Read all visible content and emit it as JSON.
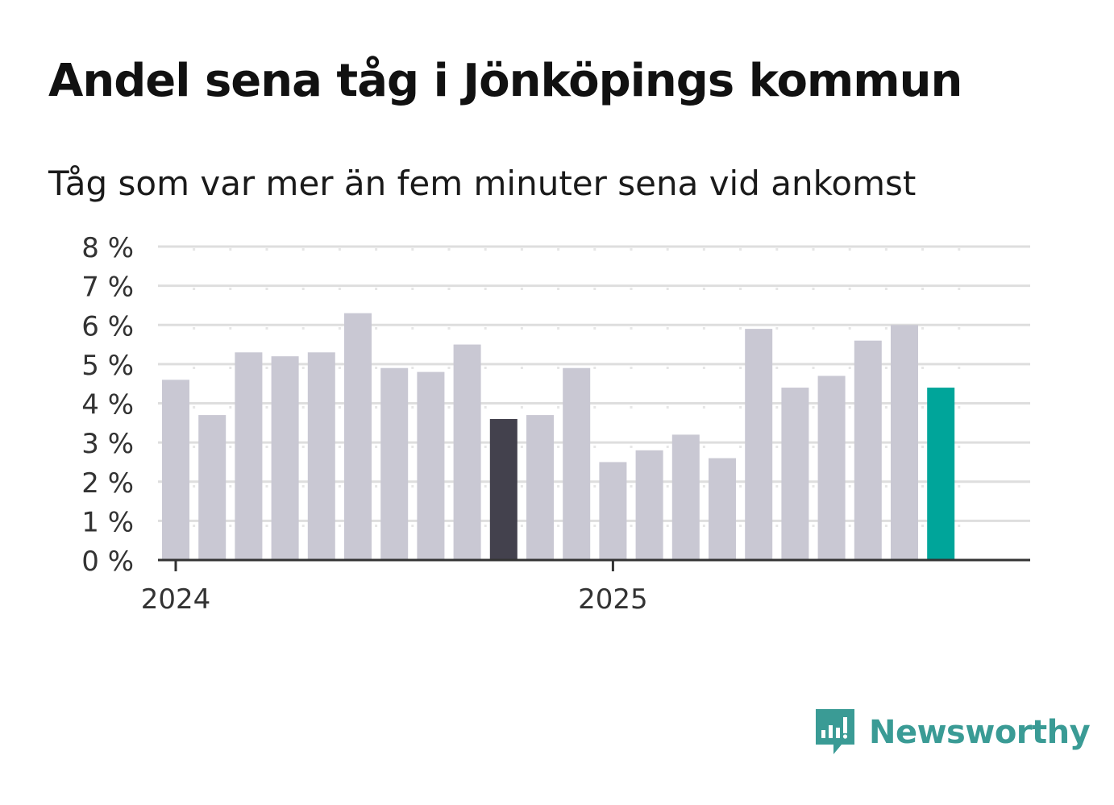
{
  "header": {
    "title": "Andel sena tåg i Jönköpings kommun",
    "subtitle": "Tåg som var mer än fem minuter sena vid ankomst"
  },
  "brand": {
    "name": "Newsworthy",
    "color": "#3a9b95",
    "icon": "newsworthy-logo-icon"
  },
  "colors": {
    "bar": "#c9c8d3",
    "highlight_past": "#43414d",
    "highlight_latest": "#00a59a",
    "grid": "#dedede",
    "axis": "#333333"
  },
  "chart_data": {
    "type": "bar",
    "title": "Andel sena tåg i Jönköpings kommun",
    "subtitle": "Tåg som var mer än fem minuter sena vid ankomst",
    "categories": [
      "2024-01",
      "2024-02",
      "2024-03",
      "2024-04",
      "2024-05",
      "2024-06",
      "2024-07",
      "2024-08",
      "2024-09",
      "2024-10",
      "2024-11",
      "2024-12",
      "2025-01",
      "2025-02",
      "2025-03",
      "2025-04",
      "2025-05",
      "2025-06",
      "2025-07",
      "2025-08",
      "2025-09",
      "2025-10",
      "2025-11"
    ],
    "values": [
      4.6,
      3.7,
      5.3,
      5.2,
      5.3,
      6.3,
      4.9,
      4.8,
      5.5,
      3.6,
      3.7,
      4.9,
      2.5,
      2.8,
      3.2,
      2.6,
      5.9,
      4.4,
      4.7,
      5.6,
      6.0,
      4.4,
      null
    ],
    "highlight_past_index": 9,
    "highlight_latest_index": 21,
    "ylim": [
      0,
      8
    ],
    "yticks": [
      0,
      1,
      2,
      3,
      4,
      5,
      6,
      7,
      8
    ],
    "ytick_labels": [
      "0 %",
      "1 %",
      "2 %",
      "3 %",
      "4 %",
      "5 %",
      "6 %",
      "7 %",
      "8 %"
    ],
    "xticks": [
      {
        "category": "2024-01",
        "label": "2024"
      },
      {
        "category": "2025-01",
        "label": "2025"
      }
    ],
    "xlabel": "",
    "ylabel": "",
    "grid": true,
    "legend": "none"
  }
}
